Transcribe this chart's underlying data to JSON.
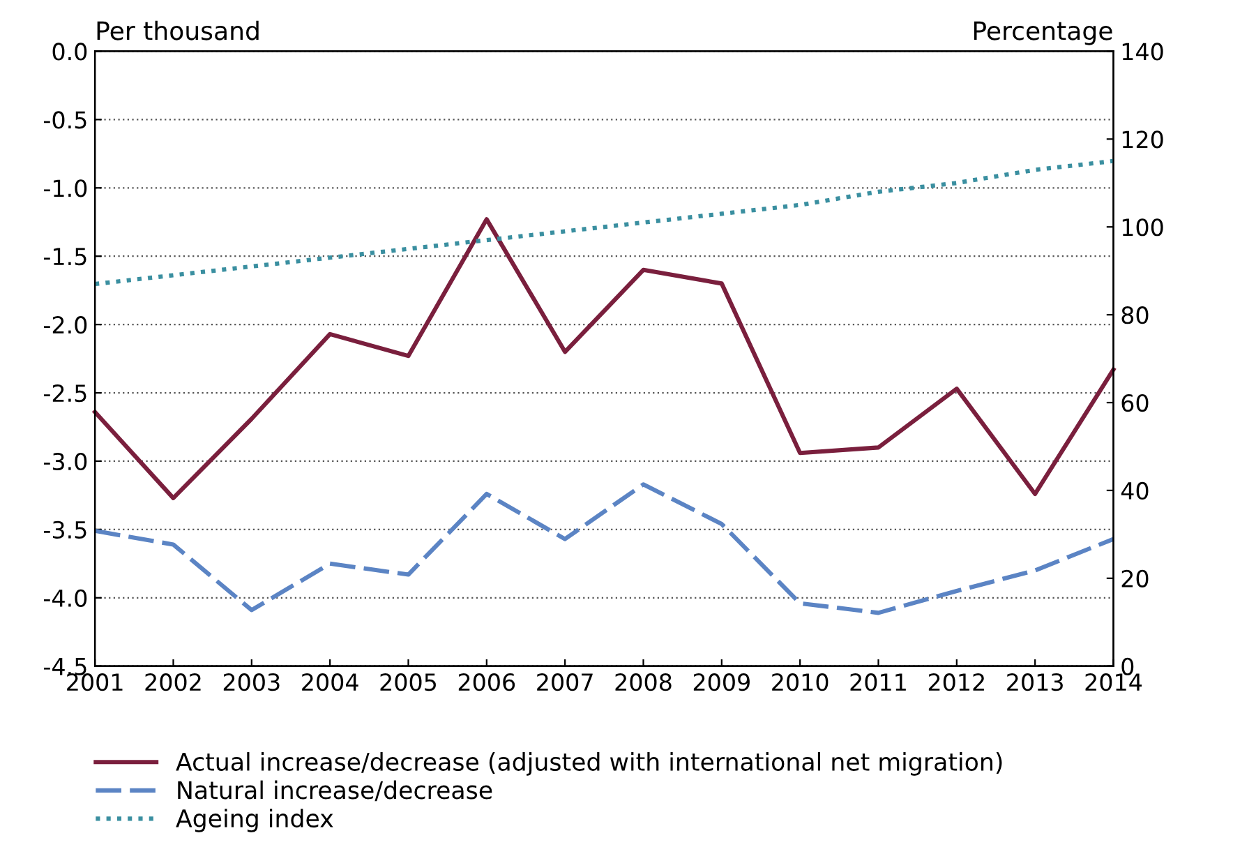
{
  "chart_data": {
    "type": "line",
    "ylabel": "Per thousand",
    "y2label": "Percentage",
    "x": [
      2001,
      2002,
      2003,
      2004,
      2005,
      2006,
      2007,
      2008,
      2009,
      2010,
      2011,
      2012,
      2013,
      2014
    ],
    "xlim": [
      2001,
      2014
    ],
    "xticks": [
      2001,
      2002,
      2003,
      2004,
      2005,
      2006,
      2007,
      2008,
      2009,
      2010,
      2011,
      2012,
      2013,
      2014
    ],
    "ylim": [
      -4.5,
      0.0
    ],
    "yticks": [
      {
        "value": 0,
        "label": "0.0"
      },
      {
        "value": -0.5,
        "label": "-0.5"
      },
      {
        "value": -1,
        "label": "-1.0"
      },
      {
        "value": -1.5,
        "label": "-1.5"
      },
      {
        "value": -2,
        "label": "-2.0"
      },
      {
        "value": -2.5,
        "label": "-2.5"
      },
      {
        "value": -3,
        "label": "-3.0"
      },
      {
        "value": -3.5,
        "label": "-3.5"
      },
      {
        "value": -4,
        "label": "-4.0"
      },
      {
        "value": -4.5,
        "label": "-4.5"
      }
    ],
    "y2lim": [
      0,
      140
    ],
    "y2ticks": [
      0,
      20,
      40,
      60,
      80,
      100,
      120,
      140
    ],
    "grid": "y",
    "legend": "bottom",
    "marker": "none",
    "series": [
      {
        "name": "Actual increase/decrease (adjusted with international net migration)",
        "color": "#7a1f3d",
        "line_style": "solid",
        "values": [
          -2.64,
          -3.27,
          -2.69,
          -2.07,
          -2.23,
          -1.23,
          -2.2,
          -1.6,
          -1.7,
          -2.94,
          -2.9,
          -2.47,
          -3.24,
          -2.33
        ]
      },
      {
        "name": "Natural increase/decrease",
        "color": "#5b84c4",
        "line_style": "dashed",
        "values": [
          -3.51,
          -3.61,
          -4.09,
          -3.75,
          -3.83,
          -3.24,
          -3.57,
          -3.17,
          -3.46,
          -4.04,
          -4.11,
          -3.95,
          -3.8,
          -3.57
        ]
      },
      {
        "name": "Ageing index",
        "color": "#3a8fa0",
        "line_style": "dotted",
        "axis": "y2",
        "values": [
          87,
          89,
          91,
          93,
          95,
          97,
          99,
          101,
          103,
          105,
          108,
          110,
          113,
          115
        ]
      }
    ]
  }
}
